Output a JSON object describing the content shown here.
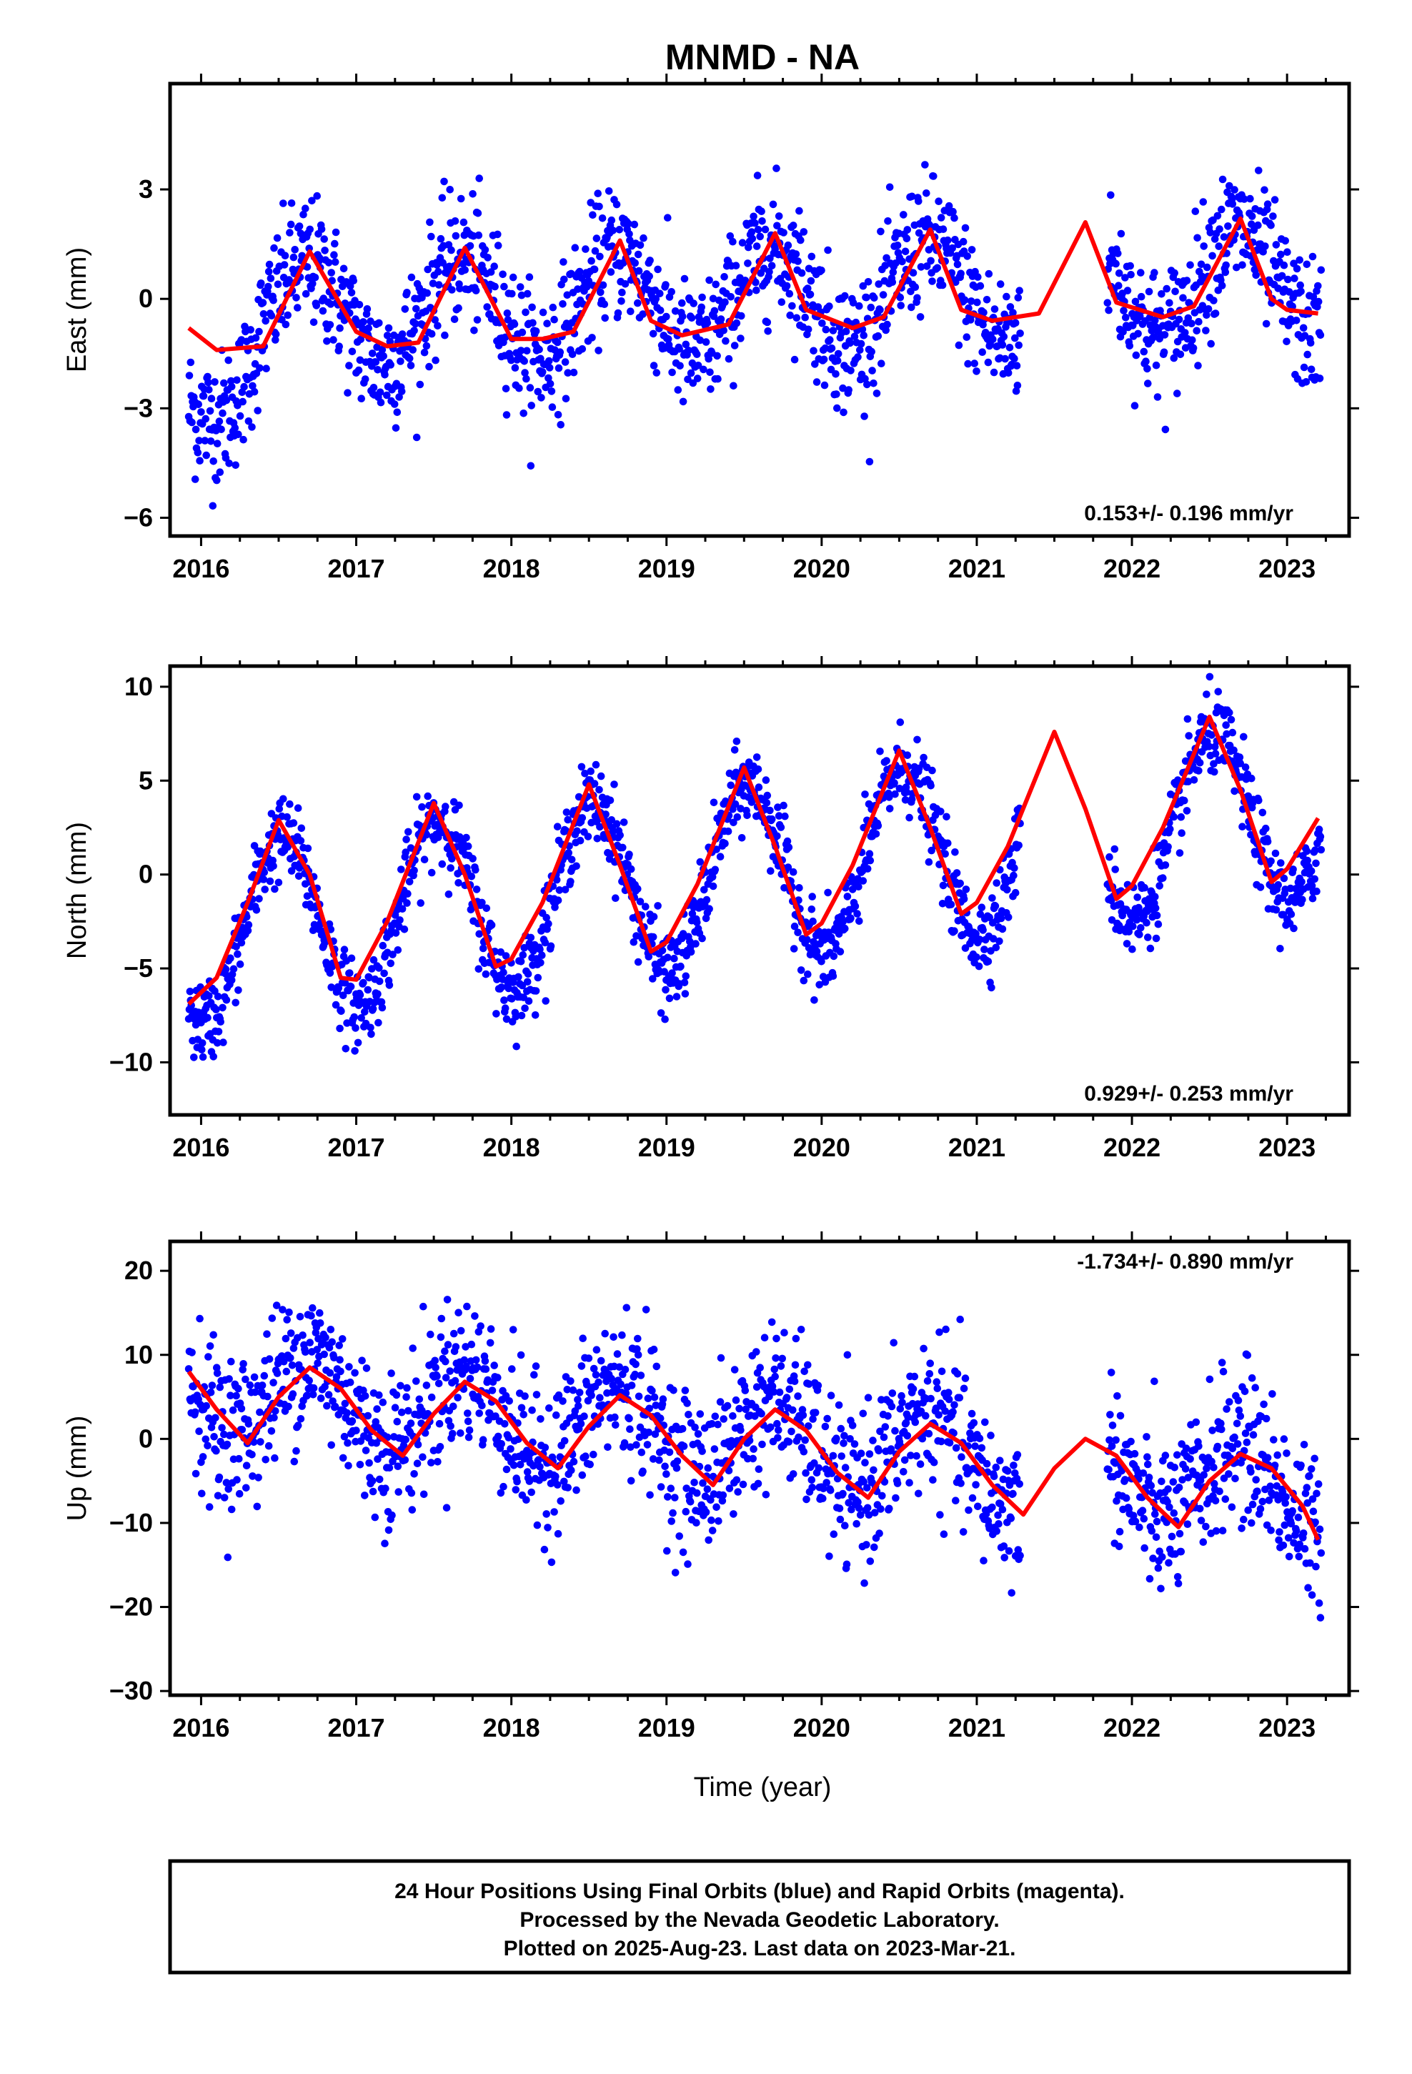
{
  "title": "MNMD - NA",
  "xlabel": "Time (year)",
  "colors": {
    "points": "#0000ff",
    "fit": "#ff0000",
    "frame": "#000000"
  },
  "footer": {
    "line1": "24 Hour Positions Using Final Orbits (blue) and Rapid Orbits (magenta).",
    "line2": "Processed by the Nevada Geodetic Laboratory.",
    "line3": "Plotted on 2025-Aug-23. Last data on 2023-Mar-21."
  },
  "chart_data": [
    {
      "type": "scatter",
      "ylabel": "East (mm)",
      "xlim": [
        2015.8,
        2023.4
      ],
      "ylim": [
        -6.5,
        5.9
      ],
      "xticks": [
        2016,
        2017,
        2018,
        2019,
        2020,
        2021,
        2022,
        2023
      ],
      "xtick_labels": [
        "2016",
        "2017",
        "2018",
        "2019",
        "2020",
        "2021",
        "2022",
        "2023"
      ],
      "yticks": [
        -6,
        -3,
        0,
        3
      ],
      "ytick_labels": [
        "−6",
        "−3",
        "0",
        "3"
      ],
      "rate": "0.153+/- 0.196 mm/yr",
      "series": [
        {
          "name": "Final Orbits",
          "color": "blue"
        },
        {
          "name": "Fit",
          "color": "red"
        }
      ],
      "fit_curve": [
        [
          2015.92,
          -0.8
        ],
        [
          2016.1,
          -1.4
        ],
        [
          2016.4,
          -1.3
        ],
        [
          2016.7,
          1.3
        ],
        [
          2017.0,
          -0.9
        ],
        [
          2017.2,
          -1.3
        ],
        [
          2017.4,
          -1.2
        ],
        [
          2017.7,
          1.4
        ],
        [
          2018.0,
          -1.1
        ],
        [
          2018.2,
          -1.1
        ],
        [
          2018.4,
          -0.9
        ],
        [
          2018.7,
          1.6
        ],
        [
          2018.9,
          -0.6
        ],
        [
          2019.1,
          -1.0
        ],
        [
          2019.4,
          -0.7
        ],
        [
          2019.7,
          1.8
        ],
        [
          2019.9,
          -0.3
        ],
        [
          2020.2,
          -0.8
        ],
        [
          2020.4,
          -0.5
        ],
        [
          2020.7,
          1.9
        ],
        [
          2020.9,
          -0.3
        ],
        [
          2021.1,
          -0.6
        ],
        [
          2021.4,
          -0.4
        ],
        [
          2021.7,
          2.1
        ],
        [
          2021.9,
          -0.1
        ],
        [
          2022.2,
          -0.5
        ],
        [
          2022.4,
          -0.2
        ],
        [
          2022.7,
          2.2
        ],
        [
          2022.9,
          0.0
        ],
        [
          2023.0,
          -0.3
        ],
        [
          2023.2,
          -0.4
        ]
      ],
      "scatter_model": {
        "amplitude": 1.4,
        "phase": 0.68,
        "trend": 0.15,
        "noise": 0.9,
        "early_offset": -2.5
      }
    },
    {
      "type": "scatter",
      "ylabel": "North (mm)",
      "xlim": [
        2015.8,
        2023.4
      ],
      "ylim": [
        -12.8,
        11.1
      ],
      "xticks": [
        2016,
        2017,
        2018,
        2019,
        2020,
        2021,
        2022,
        2023
      ],
      "xtick_labels": [
        "2016",
        "2017",
        "2018",
        "2019",
        "2020",
        "2021",
        "2022",
        "2023"
      ],
      "yticks": [
        -10,
        -5,
        0,
        5,
        10
      ],
      "ytick_labels": [
        "−10",
        "−5",
        "0",
        "5",
        "10"
      ],
      "rate": "0.929+/- 0.253 mm/yr",
      "series": [
        {
          "name": "Final Orbits",
          "color": "blue"
        },
        {
          "name": "Fit",
          "color": "red"
        }
      ],
      "fit_curve": [
        [
          2015.92,
          -6.9
        ],
        [
          2016.1,
          -5.5
        ],
        [
          2016.3,
          -1.5
        ],
        [
          2016.5,
          2.9
        ],
        [
          2016.7,
          0.0
        ],
        [
          2016.9,
          -5.5
        ],
        [
          2017.0,
          -5.6
        ],
        [
          2017.2,
          -2.5
        ],
        [
          2017.5,
          3.8
        ],
        [
          2017.7,
          0.0
        ],
        [
          2017.9,
          -4.9
        ],
        [
          2018.0,
          -4.5
        ],
        [
          2018.2,
          -1.5
        ],
        [
          2018.5,
          4.8
        ],
        [
          2018.7,
          0.5
        ],
        [
          2018.9,
          -4.1
        ],
        [
          2019.0,
          -3.6
        ],
        [
          2019.2,
          -0.5
        ],
        [
          2019.5,
          5.7
        ],
        [
          2019.7,
          1.5
        ],
        [
          2019.9,
          -3.2
        ],
        [
          2020.0,
          -2.6
        ],
        [
          2020.2,
          0.5
        ],
        [
          2020.5,
          6.6
        ],
        [
          2020.7,
          2.5
        ],
        [
          2020.9,
          -2.1
        ],
        [
          2021.0,
          -1.5
        ],
        [
          2021.2,
          1.5
        ],
        [
          2021.5,
          7.6
        ],
        [
          2021.7,
          3.5
        ],
        [
          2021.9,
          -1.3
        ],
        [
          2022.0,
          -0.6
        ],
        [
          2022.2,
          2.5
        ],
        [
          2022.5,
          8.4
        ],
        [
          2022.7,
          4.5
        ],
        [
          2022.9,
          -0.4
        ],
        [
          2023.0,
          0.3
        ],
        [
          2023.2,
          3.0
        ]
      ],
      "scatter_model": {
        "amplitude": 4.7,
        "phase": 0.52,
        "trend": 0.93,
        "noise": 1.1,
        "early_offset": 0
      }
    },
    {
      "type": "scatter",
      "ylabel": "Up (mm)",
      "xlim": [
        2015.8,
        2023.4
      ],
      "ylim": [
        -30.5,
        23.5
      ],
      "xticks": [
        2016,
        2017,
        2018,
        2019,
        2020,
        2021,
        2022,
        2023
      ],
      "xtick_labels": [
        "2016",
        "2017",
        "2018",
        "2019",
        "2020",
        "2021",
        "2022",
        "2023"
      ],
      "yticks": [
        -30,
        -20,
        -10,
        0,
        10,
        20
      ],
      "ytick_labels": [
        "−30",
        "−20",
        "−10",
        "0",
        "10",
        "20"
      ],
      "rate": "-1.734+/- 0.890 mm/yr",
      "series": [
        {
          "name": "Final Orbits",
          "color": "blue"
        },
        {
          "name": "Fit",
          "color": "red"
        }
      ],
      "fit_curve": [
        [
          2015.92,
          8.0
        ],
        [
          2016.1,
          3.5
        ],
        [
          2016.3,
          -0.5
        ],
        [
          2016.5,
          5.0
        ],
        [
          2016.7,
          8.5
        ],
        [
          2016.9,
          6.0
        ],
        [
          2017.1,
          1.0
        ],
        [
          2017.3,
          -2.0
        ],
        [
          2017.5,
          3.0
        ],
        [
          2017.7,
          6.8
        ],
        [
          2017.9,
          4.5
        ],
        [
          2018.1,
          -0.5
        ],
        [
          2018.3,
          -3.5
        ],
        [
          2018.5,
          1.5
        ],
        [
          2018.7,
          5.2
        ],
        [
          2018.9,
          2.8
        ],
        [
          2019.1,
          -2.0
        ],
        [
          2019.3,
          -5.5
        ],
        [
          2019.5,
          0.0
        ],
        [
          2019.7,
          3.5
        ],
        [
          2019.9,
          1.0
        ],
        [
          2020.1,
          -4.0
        ],
        [
          2020.3,
          -7.0
        ],
        [
          2020.5,
          -1.5
        ],
        [
          2020.7,
          1.8
        ],
        [
          2020.9,
          -0.5
        ],
        [
          2021.1,
          -5.5
        ],
        [
          2021.3,
          -9.0
        ],
        [
          2021.5,
          -3.5
        ],
        [
          2021.7,
          0.0
        ],
        [
          2021.9,
          -2.0
        ],
        [
          2022.1,
          -7.0
        ],
        [
          2022.3,
          -10.5
        ],
        [
          2022.5,
          -5.0
        ],
        [
          2022.7,
          -1.8
        ],
        [
          2022.9,
          -3.5
        ],
        [
          2023.1,
          -8.0
        ],
        [
          2023.2,
          -12.0
        ]
      ],
      "scatter_model": {
        "amplitude": 5.0,
        "phase": 0.7,
        "trend": -1.73,
        "noise": 4.5,
        "early_offset": 0
      }
    }
  ]
}
